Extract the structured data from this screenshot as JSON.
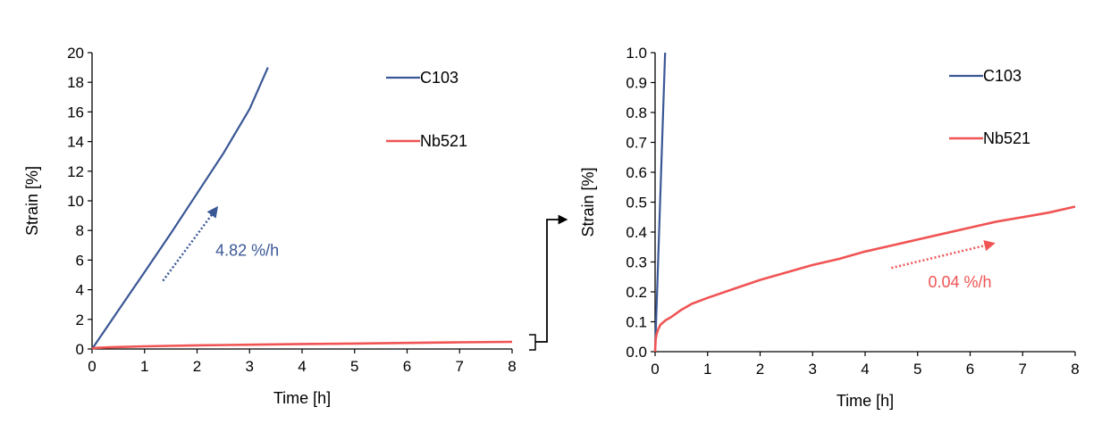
{
  "chart_data": [
    {
      "type": "line",
      "xlabel": "Time [h]",
      "ylabel": "Strain [%]",
      "xlim": [
        0,
        8
      ],
      "ylim": [
        0,
        20
      ],
      "xticks": [
        0,
        1,
        2,
        3,
        4,
        5,
        6,
        7,
        8
      ],
      "yticks": [
        0,
        2,
        4,
        6,
        8,
        10,
        12,
        14,
        16,
        18,
        20
      ],
      "grid": false,
      "legend": "top-right",
      "series": [
        {
          "name": "C103",
          "color": "#3a5795",
          "x": [
            0,
            0.5,
            1,
            1.5,
            2,
            2.5,
            3,
            3.35
          ],
          "y": [
            0,
            2.6,
            5.2,
            7.8,
            10.5,
            13.2,
            16.2,
            19.0
          ]
        },
        {
          "name": "Nb521",
          "color": "#f05454",
          "x": [
            0,
            0.02,
            0.1,
            0.3,
            0.5,
            1,
            2,
            3,
            4,
            5,
            6,
            7,
            8
          ],
          "y": [
            0,
            0.05,
            0.08,
            0.11,
            0.13,
            0.18,
            0.25,
            0.29,
            0.34,
            0.37,
            0.41,
            0.45,
            0.48
          ]
        }
      ],
      "annotations": [
        {
          "text": "4.82 %/h",
          "color": "#3a5795",
          "arrow_from": [
            1.35,
            4.6
          ],
          "arrow_to": [
            2.35,
            9.4
          ],
          "text_at": [
            2.35,
            6.3
          ]
        }
      ]
    },
    {
      "type": "line",
      "xlabel": "Time [h]",
      "ylabel": "Strain [%]",
      "xlim": [
        0,
        8
      ],
      "ylim": [
        0,
        1.0
      ],
      "xticks": [
        0,
        1,
        2,
        3,
        4,
        5,
        6,
        7,
        8
      ],
      "yticks": [
        0.0,
        0.1,
        0.2,
        0.3,
        0.4,
        0.5,
        0.6,
        0.7,
        0.8,
        0.9,
        1.0
      ],
      "grid": false,
      "legend": "top-right",
      "series": [
        {
          "name": "C103",
          "color": "#3a5795",
          "x": [
            0,
            0.19
          ],
          "y": [
            0,
            1.0
          ]
        },
        {
          "name": "Nb521",
          "color": "#f05454",
          "x": [
            0,
            0.01,
            0.03,
            0.06,
            0.1,
            0.2,
            0.3,
            0.5,
            0.7,
            1,
            1.5,
            2,
            2.5,
            3,
            3.5,
            4,
            4.5,
            5,
            5.5,
            6,
            6.5,
            7,
            7.5,
            8
          ],
          "y": [
            0,
            0.04,
            0.06,
            0.075,
            0.09,
            0.105,
            0.115,
            0.14,
            0.16,
            0.18,
            0.21,
            0.24,
            0.265,
            0.29,
            0.31,
            0.335,
            0.355,
            0.375,
            0.395,
            0.415,
            0.435,
            0.45,
            0.465,
            0.485
          ]
        }
      ],
      "annotations": [
        {
          "text": "0.04 %/h",
          "color": "#f05454",
          "arrow_from": [
            4.5,
            0.28
          ],
          "arrow_to": [
            6.4,
            0.36
          ],
          "text_at": [
            5.2,
            0.215
          ]
        }
      ]
    }
  ]
}
